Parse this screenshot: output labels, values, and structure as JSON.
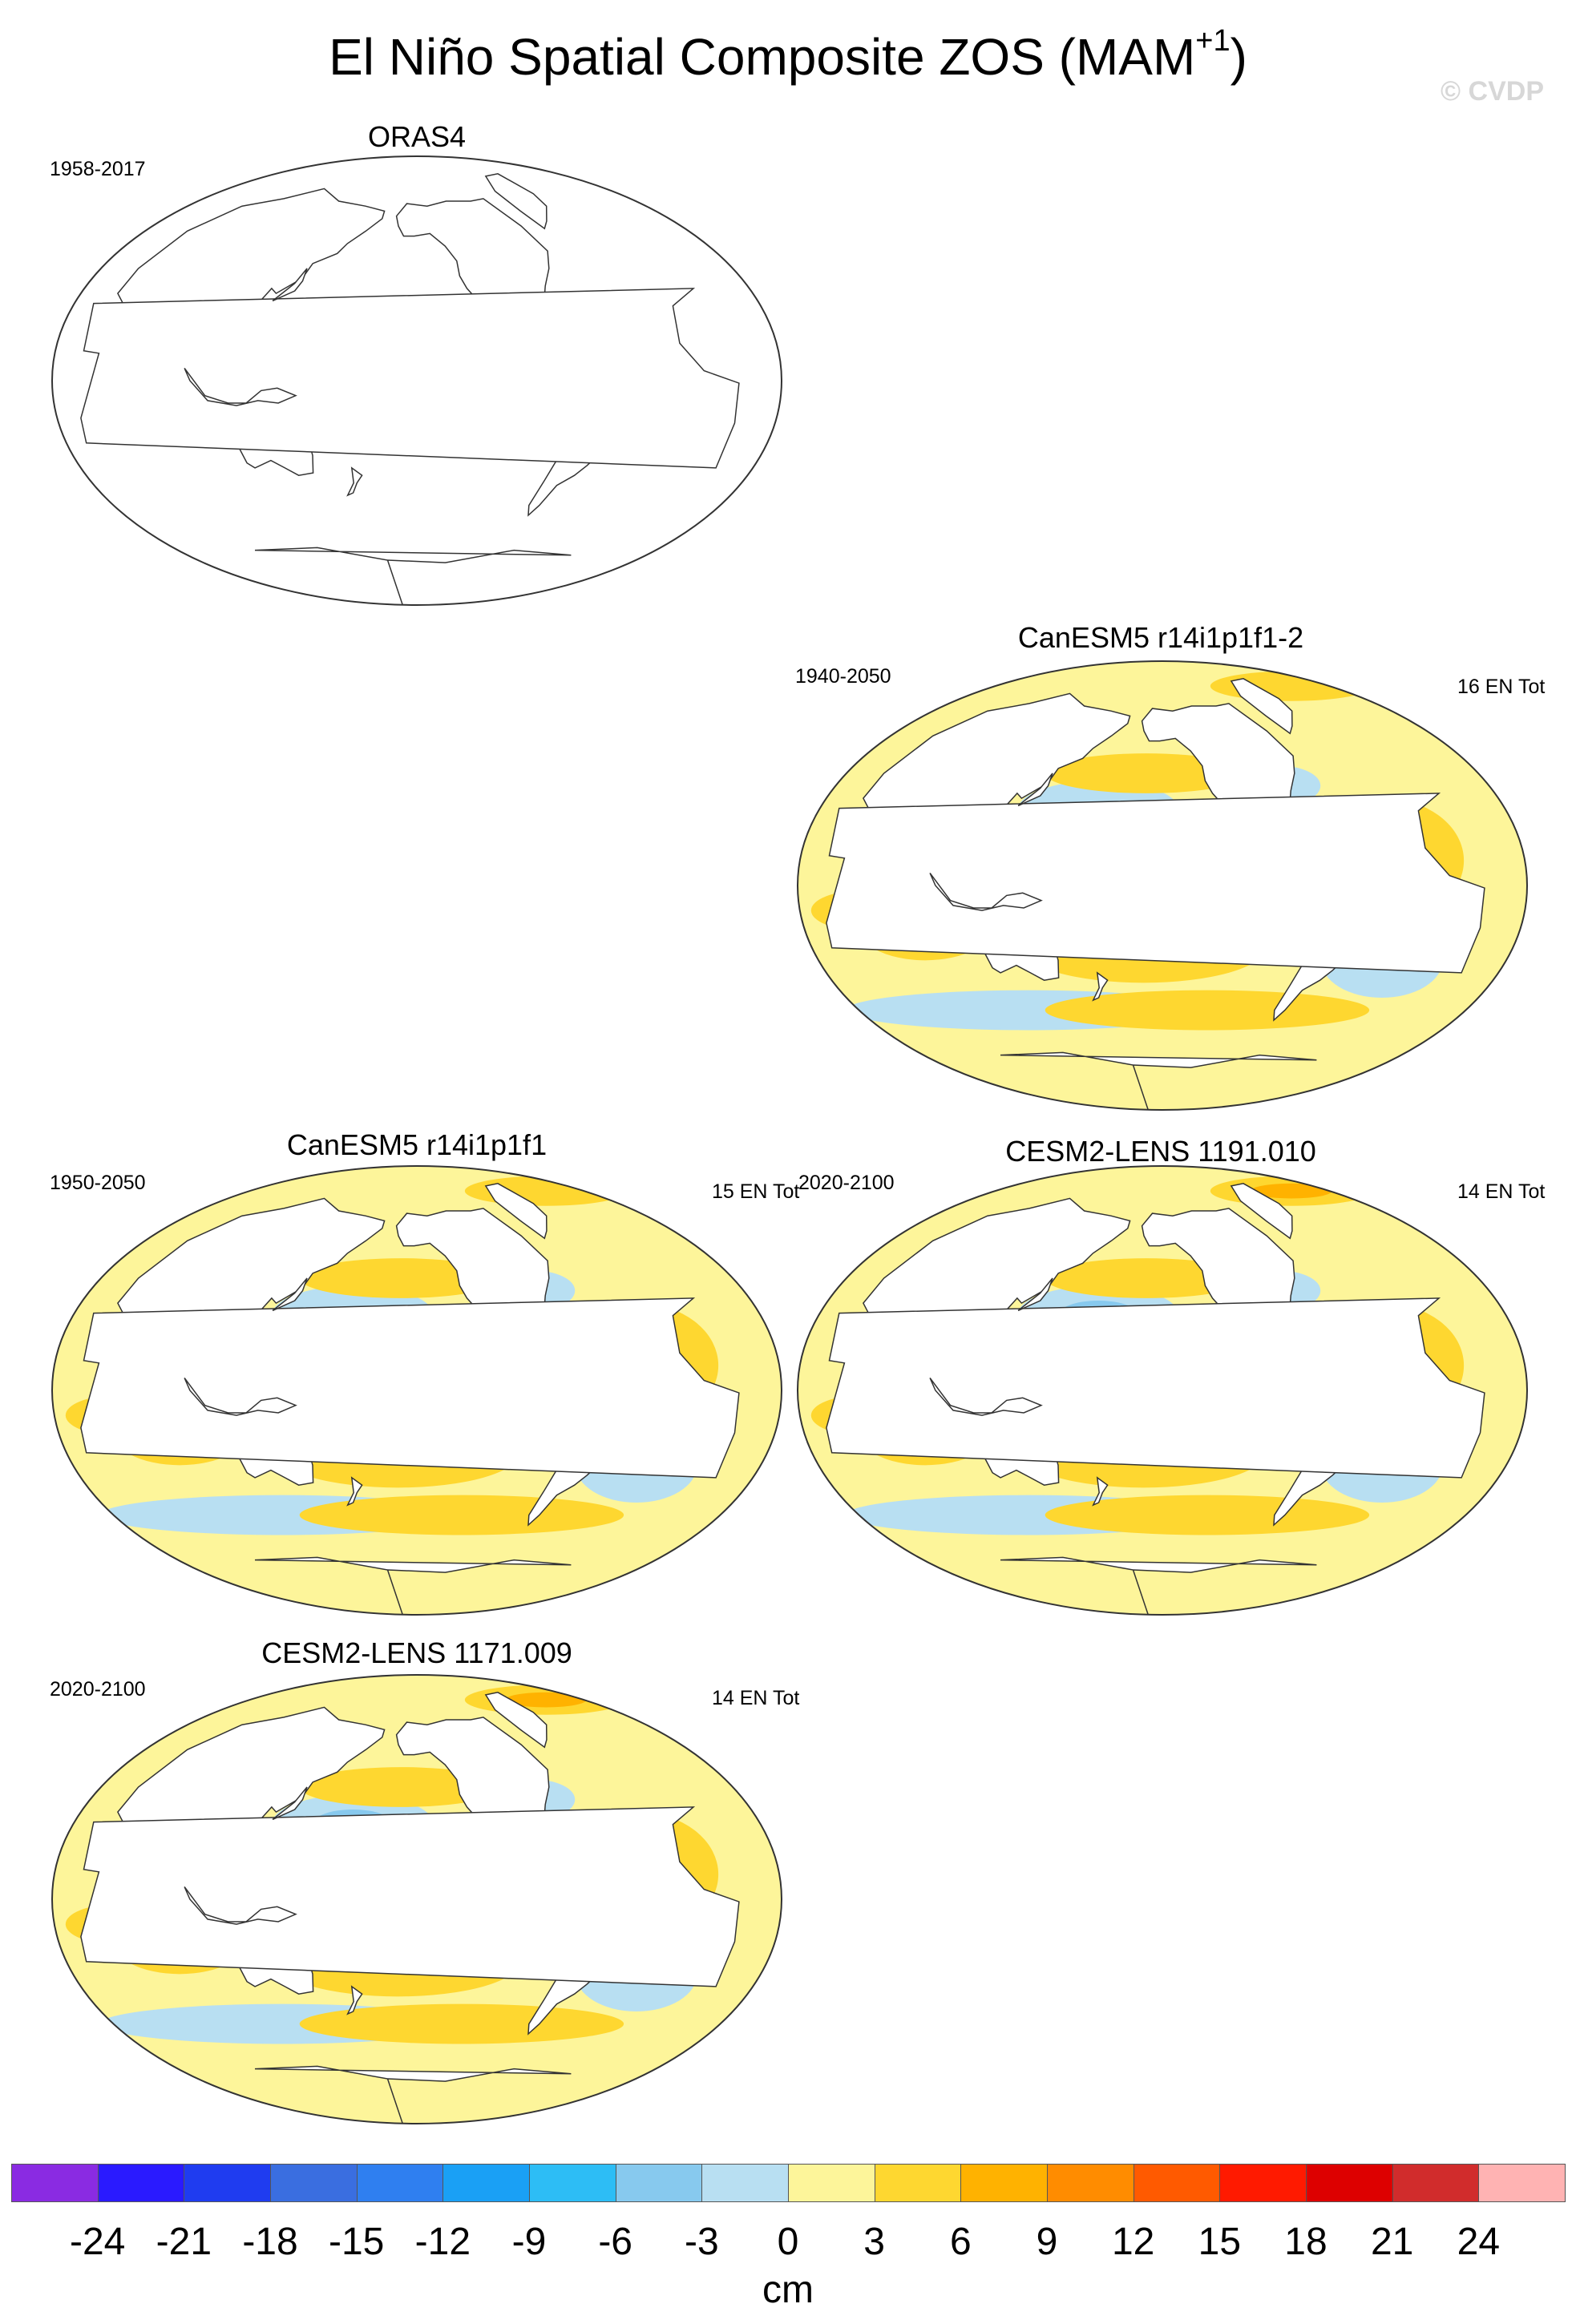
{
  "figure": {
    "title": "El Niño Spatial Composite ZOS (MAM",
    "title_sup": "+1",
    "title_close": ")",
    "copyright": "© CVDP"
  },
  "panels": [
    {
      "id": "oras4",
      "title": "ORAS4",
      "period": "1958-2017",
      "count": "",
      "has_data": false
    },
    {
      "id": "canesm5-2",
      "title": "CanESM5 r14i1p1f1-2",
      "period": "1940-2050",
      "count": "16 EN Tot",
      "has_data": true,
      "intensity": 0.6
    },
    {
      "id": "canesm5",
      "title": "CanESM5 r14i1p1f1",
      "period": "1950-2050",
      "count": "15 EN Tot",
      "has_data": true,
      "intensity": 0.7
    },
    {
      "id": "cesm2-1191",
      "title": "CESM2-LENS 1191.010",
      "period": "2020-2100",
      "count": "14 EN Tot",
      "has_data": true,
      "intensity": 1.0
    },
    {
      "id": "cesm2-1171",
      "title": "CESM2-LENS 1171.009",
      "period": "2020-2100",
      "count": "14 EN Tot",
      "has_data": true,
      "intensity": 1.0
    }
  ],
  "colorbar": {
    "unit": "cm",
    "labels": [
      "-24",
      "-21",
      "-18",
      "-15",
      "-12",
      "-9",
      "-6",
      "-3",
      "0",
      "3",
      "6",
      "9",
      "12",
      "15",
      "18",
      "21",
      "24"
    ],
    "colors": [
      "#8a2be2",
      "#2a1aff",
      "#1f3cf0",
      "#3a6ee0",
      "#2f7ff0",
      "#1aa0f5",
      "#2dbdf5",
      "#87c9ee",
      "#b8dff2",
      "#fdf59a",
      "#fed730",
      "#ffb200",
      "#ff8c00",
      "#ff5a00",
      "#ff1a00",
      "#dd0000",
      "#d12c2c",
      "#ffb3b3"
    ]
  }
}
